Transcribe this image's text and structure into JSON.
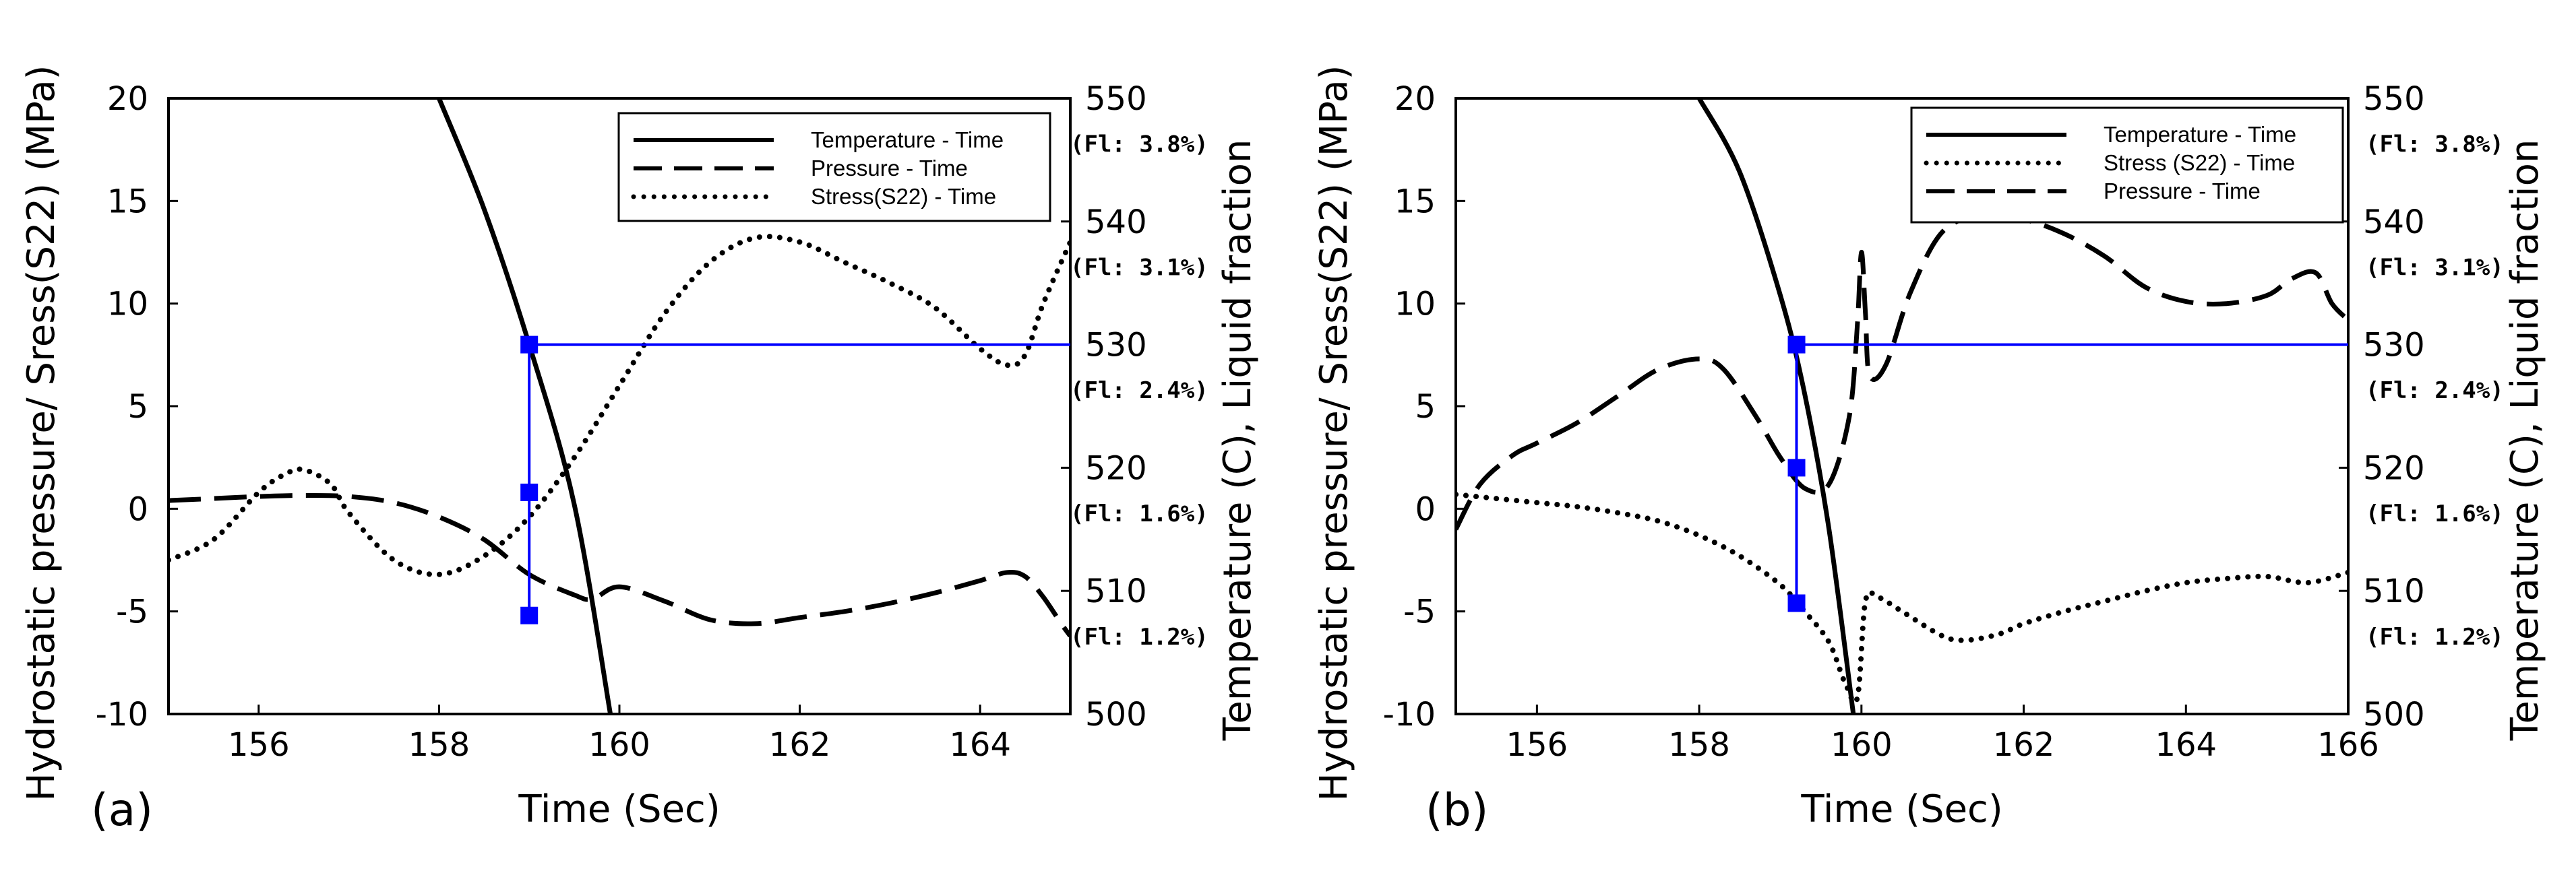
{
  "chart_data": [
    {
      "type": "line",
      "panel_label": "(a)",
      "xlabel": "Time (Sec)",
      "ylabel": "Hydrostatic pressure/ Sress(S22) (MPa)",
      "y2label": "Temperature (C), Liquid fraction",
      "xlim": [
        155,
        165
      ],
      "ylim": [
        -10,
        20
      ],
      "y2lim": [
        500,
        550
      ],
      "xticks": [
        "156",
        "158",
        "160",
        "162",
        "164"
      ],
      "yticks": [
        "-10",
        "-5",
        "0",
        "5",
        "10",
        "15",
        "20"
      ],
      "y2ticks": [
        "500",
        "510",
        "520",
        "530",
        "540",
        "550"
      ],
      "fl_labels": [
        "(Fl: 3.8%)",
        "(Fl: 3.1%)",
        "(Fl: 2.4%)",
        "(Fl: 1.6%)",
        "(Fl: 1.2%)"
      ],
      "legend": [
        "Temperature - Time",
        "Pressure - Time",
        "Stress(S22) - Time"
      ],
      "series": [
        {
          "name": "Temperature - Time",
          "axis": "right",
          "style": "solid",
          "x": [
            158.0,
            158.5,
            159.0,
            159.5,
            159.9
          ],
          "y": [
            550,
            541,
            530,
            517,
            500
          ]
        },
        {
          "name": "Pressure - Time",
          "axis": "left",
          "style": "dashed",
          "x": [
            155.0,
            155.5,
            156.0,
            156.5,
            157.0,
            157.5,
            158.0,
            158.5,
            159.0,
            159.5,
            159.7,
            160.0,
            160.5,
            161.0,
            161.5,
            162.0,
            162.5,
            163.0,
            163.5,
            164.0,
            164.3,
            164.5,
            164.7,
            164.9,
            165.0
          ],
          "y": [
            0.4,
            0.5,
            0.6,
            0.65,
            0.6,
            0.3,
            -0.4,
            -1.5,
            -3.2,
            -4.2,
            -4.4,
            -3.8,
            -4.5,
            -5.4,
            -5.6,
            -5.3,
            -5.0,
            -4.6,
            -4.1,
            -3.5,
            -3.1,
            -3.3,
            -4.3,
            -5.6,
            -6.2
          ]
        },
        {
          "name": "Stress(S22) - Time",
          "axis": "left",
          "style": "dotted",
          "x": [
            155.0,
            155.5,
            156.0,
            156.3,
            156.5,
            156.8,
            157.0,
            157.5,
            158.0,
            158.5,
            159.0,
            159.5,
            160.0,
            160.5,
            161.0,
            161.5,
            162.0,
            162.5,
            163.0,
            163.5,
            164.0,
            164.3,
            164.5,
            164.7,
            165.0
          ],
          "y": [
            -2.5,
            -1.5,
            0.8,
            1.7,
            1.9,
            1.2,
            -0.2,
            -2.5,
            -3.2,
            -2.3,
            -0.4,
            2.5,
            6.0,
            9.5,
            12.0,
            13.2,
            13.0,
            12.0,
            11.0,
            9.8,
            7.8,
            7.0,
            7.5,
            10.0,
            13.0
          ]
        },
        {
          "name": "guide",
          "axis": "right",
          "style": "blue",
          "x": [
            159.0,
            159.0,
            165.0
          ],
          "y": [
            508,
            530,
            530
          ],
          "markers": [
            [
              159.0,
              530
            ],
            [
              159.0,
              518
            ],
            [
              159.0,
              508
            ]
          ]
        }
      ]
    },
    {
      "type": "line",
      "panel_label": "(b)",
      "xlabel": "Time (Sec)",
      "ylabel": "Hydrostatic pressure/ Sress(S22) (MPa)",
      "y2label": "Temperature (C), Liquid fraction",
      "xlim": [
        155,
        166
      ],
      "ylim": [
        -10,
        20
      ],
      "y2lim": [
        500,
        550
      ],
      "xticks": [
        "156",
        "158",
        "160",
        "162",
        "164",
        "166"
      ],
      "yticks": [
        "-10",
        "-5",
        "0",
        "5",
        "10",
        "15",
        "20"
      ],
      "y2ticks": [
        "500",
        "510",
        "520",
        "530",
        "540",
        "550"
      ],
      "fl_labels": [
        "(Fl: 3.8%)",
        "(Fl: 3.1%)",
        "(Fl: 2.4%)",
        "(Fl: 1.6%)",
        "(Fl: 1.2%)"
      ],
      "legend": [
        "Temperature - Time",
        "Stress (S22) - Time",
        "Pressure - Time"
      ],
      "series": [
        {
          "name": "Temperature - Time",
          "axis": "right",
          "style": "solid",
          "x": [
            158.0,
            158.5,
            159.0,
            159.3,
            159.6,
            159.9
          ],
          "y": [
            550,
            544,
            534,
            526,
            515,
            500
          ]
        },
        {
          "name": "Stress (S22) - Time",
          "axis": "left",
          "style": "dotted",
          "x": [
            155.0,
            155.5,
            156.0,
            156.5,
            157.0,
            157.5,
            158.0,
            158.5,
            159.0,
            159.3,
            159.6,
            159.8,
            159.95,
            160.05,
            160.2,
            160.5,
            161.0,
            161.3,
            161.7,
            162.0,
            162.5,
            163.0,
            163.5,
            164.0,
            164.5,
            165.0,
            165.5,
            166.0
          ],
          "y": [
            0.7,
            0.5,
            0.3,
            0.1,
            -0.2,
            -0.6,
            -1.3,
            -2.3,
            -3.7,
            -5.0,
            -6.5,
            -8.5,
            -9.2,
            -4.5,
            -4.3,
            -5.0,
            -6.2,
            -6.4,
            -6.1,
            -5.6,
            -5.0,
            -4.5,
            -4.0,
            -3.6,
            -3.4,
            -3.3,
            -3.6,
            -3.1
          ]
        },
        {
          "name": "Pressure - Time",
          "axis": "left",
          "style": "dashed",
          "x": [
            155.0,
            155.3,
            155.7,
            156.0,
            156.5,
            157.0,
            157.5,
            158.0,
            158.3,
            158.7,
            159.0,
            159.3,
            159.6,
            159.85,
            159.95,
            160.0,
            160.05,
            160.1,
            160.3,
            160.6,
            161.0,
            161.5,
            162.0,
            162.5,
            163.0,
            163.5,
            164.0,
            164.5,
            165.0,
            165.3,
            165.6,
            165.8,
            166.0
          ],
          "y": [
            -1.0,
            1.2,
            2.6,
            3.2,
            4.2,
            5.5,
            6.8,
            7.3,
            6.8,
            4.5,
            2.5,
            1.0,
            1.2,
            4.5,
            9.0,
            12.5,
            9.5,
            6.5,
            7.0,
            10.5,
            13.5,
            14.3,
            14.1,
            13.4,
            12.3,
            10.8,
            10.1,
            10.0,
            10.4,
            11.2,
            11.5,
            10.0,
            9.2
          ]
        },
        {
          "name": "guide",
          "axis": "right",
          "style": "blue",
          "x": [
            159.2,
            159.2,
            159.2,
            166.0
          ],
          "y": [
            509,
            530,
            530,
            530
          ],
          "markers": [
            [
              159.2,
              530
            ],
            [
              159.2,
              520
            ],
            [
              159.2,
              509
            ]
          ]
        }
      ]
    }
  ]
}
